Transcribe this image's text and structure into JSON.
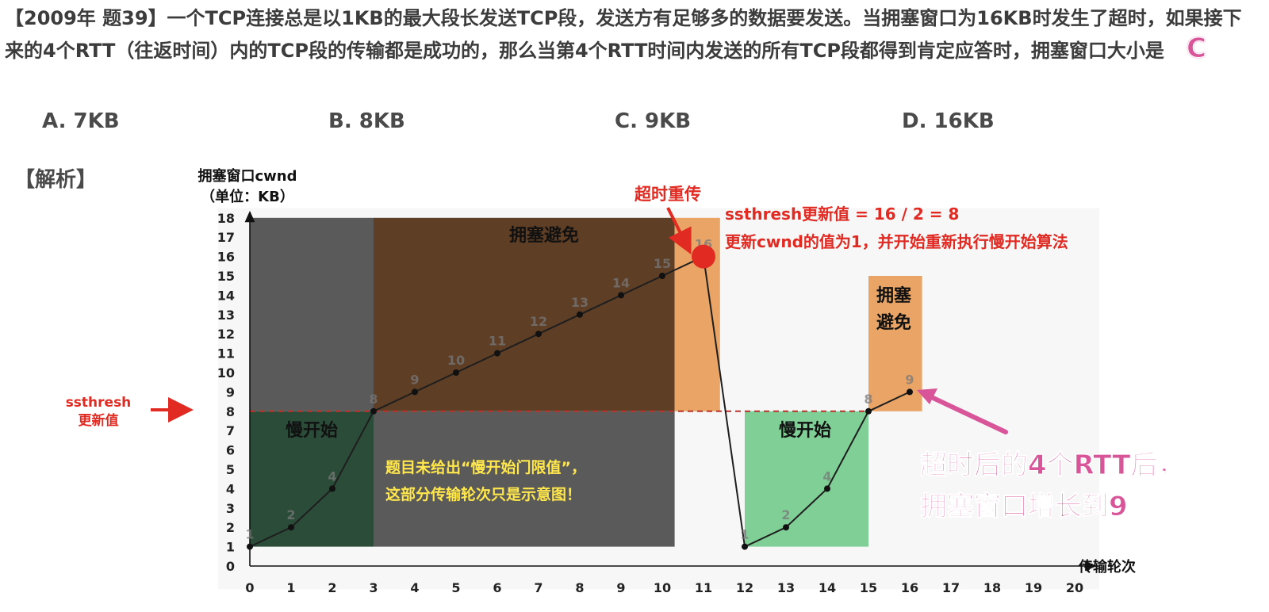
{
  "question": {
    "text": "【2009年 题39】一个TCP连接总是以1KB的最大段长发送TCP段，发送方有足够多的数据要发送。当拥塞窗口为16KB时发生了超时，如果接下来的4个RTT（往返时间）内的TCP段的传输都是成功的，那么当第4个RTT时间内发送的所有TCP段都得到肯定应答时，拥塞窗口大小是",
    "answer": "C"
  },
  "options": [
    "A. 7KB",
    "B. 8KB",
    "C. 9KB",
    "D. 16KB"
  ],
  "analysis_label": "【解析】",
  "colors": {
    "gray_region": "#5a5a5a",
    "brown_region": "#5e3e25",
    "dark_green_region": "#2b4c38",
    "orange_region": "#e9a466",
    "light_green_region": "#7fcf97",
    "red": "#e02a22",
    "pink": "#d9559a",
    "yellow_note": "#ffe74c"
  },
  "chart_data": {
    "type": "line",
    "ylabel_line1": "拥塞窗口cwnd",
    "ylabel_line2": "（单位：KB）",
    "xlabel": "传输轮次",
    "xlim": [
      0,
      20
    ],
    "ylim": [
      0,
      18
    ],
    "x_ticks": [
      0,
      1,
      2,
      3,
      4,
      5,
      6,
      7,
      8,
      9,
      10,
      11,
      12,
      13,
      14,
      15,
      16,
      17,
      18,
      19,
      20
    ],
    "y_ticks": [
      0,
      1,
      2,
      3,
      4,
      5,
      6,
      7,
      8,
      9,
      10,
      11,
      12,
      13,
      14,
      15,
      16,
      17,
      18
    ],
    "series": [
      {
        "points": [
          [
            0,
            1
          ],
          [
            1,
            2
          ],
          [
            2,
            4
          ],
          [
            3,
            8
          ],
          [
            4,
            9
          ],
          [
            5,
            10
          ],
          [
            6,
            11
          ],
          [
            7,
            12
          ],
          [
            8,
            13
          ],
          [
            9,
            14
          ],
          [
            10,
            15
          ],
          [
            11,
            16
          ],
          [
            12,
            1
          ],
          [
            13,
            2
          ],
          [
            14,
            4
          ],
          [
            15,
            8
          ],
          [
            16,
            9
          ]
        ],
        "point_labels": [
          "1",
          "2",
          "4",
          "8",
          "9",
          "10",
          "11",
          "12",
          "13",
          "14",
          "15",
          "16",
          "1",
          "2",
          "4",
          "8",
          "9"
        ]
      }
    ],
    "ssthresh_line": 8,
    "timeout_point": [
      11,
      16
    ],
    "regions": [
      {
        "label": "拥塞避免",
        "color_key": "brown_region",
        "x": [
          3,
          10.3
        ],
        "y": [
          8,
          18
        ]
      },
      {
        "label": "慢开始",
        "color_key": "dark_green_region",
        "x": [
          0,
          3
        ],
        "y": [
          1,
          8
        ]
      },
      {
        "label": "",
        "color_key": "gray_region",
        "x": [
          0,
          3
        ],
        "y": [
          8,
          18
        ]
      },
      {
        "label": "",
        "color_key": "gray_region",
        "x": [
          3,
          10.3
        ],
        "y": [
          1,
          8
        ]
      },
      {
        "label": "",
        "color_key": "orange_region",
        "x": [
          10.3,
          11.4
        ],
        "y": [
          8,
          18
        ]
      },
      {
        "label": "慢开始",
        "color_key": "light_green_region",
        "x": [
          12,
          15
        ],
        "y": [
          1,
          8
        ]
      },
      {
        "label": "拥塞\n避免",
        "color_key": "orange_region",
        "x": [
          15,
          16.3
        ],
        "y": [
          8,
          15
        ]
      }
    ],
    "annotations": {
      "timeout_label": "超时重传",
      "ssthresh_update_line1": "ssthresh更新值 = 16 / 2 = 8",
      "ssthresh_update_line2": "更新cwnd的值为1，并开始重新执行慢开始算法",
      "ssthresh_side_line1": "ssthresh",
      "ssthresh_side_line2": "更新值",
      "note_line1": "题目未给出“慢开始门限值”，",
      "note_line2": "这部分传输轮次只是示意图！",
      "result_line1": "超时后的4个RTT后，",
      "result_line2": "拥塞窗口增长到9",
      "ca_region_label": "拥塞避免",
      "ss_region_label": "慢开始",
      "ca2_line1": "拥塞",
      "ca2_line2": "避免",
      "ss2_region_label": "慢开始"
    }
  }
}
